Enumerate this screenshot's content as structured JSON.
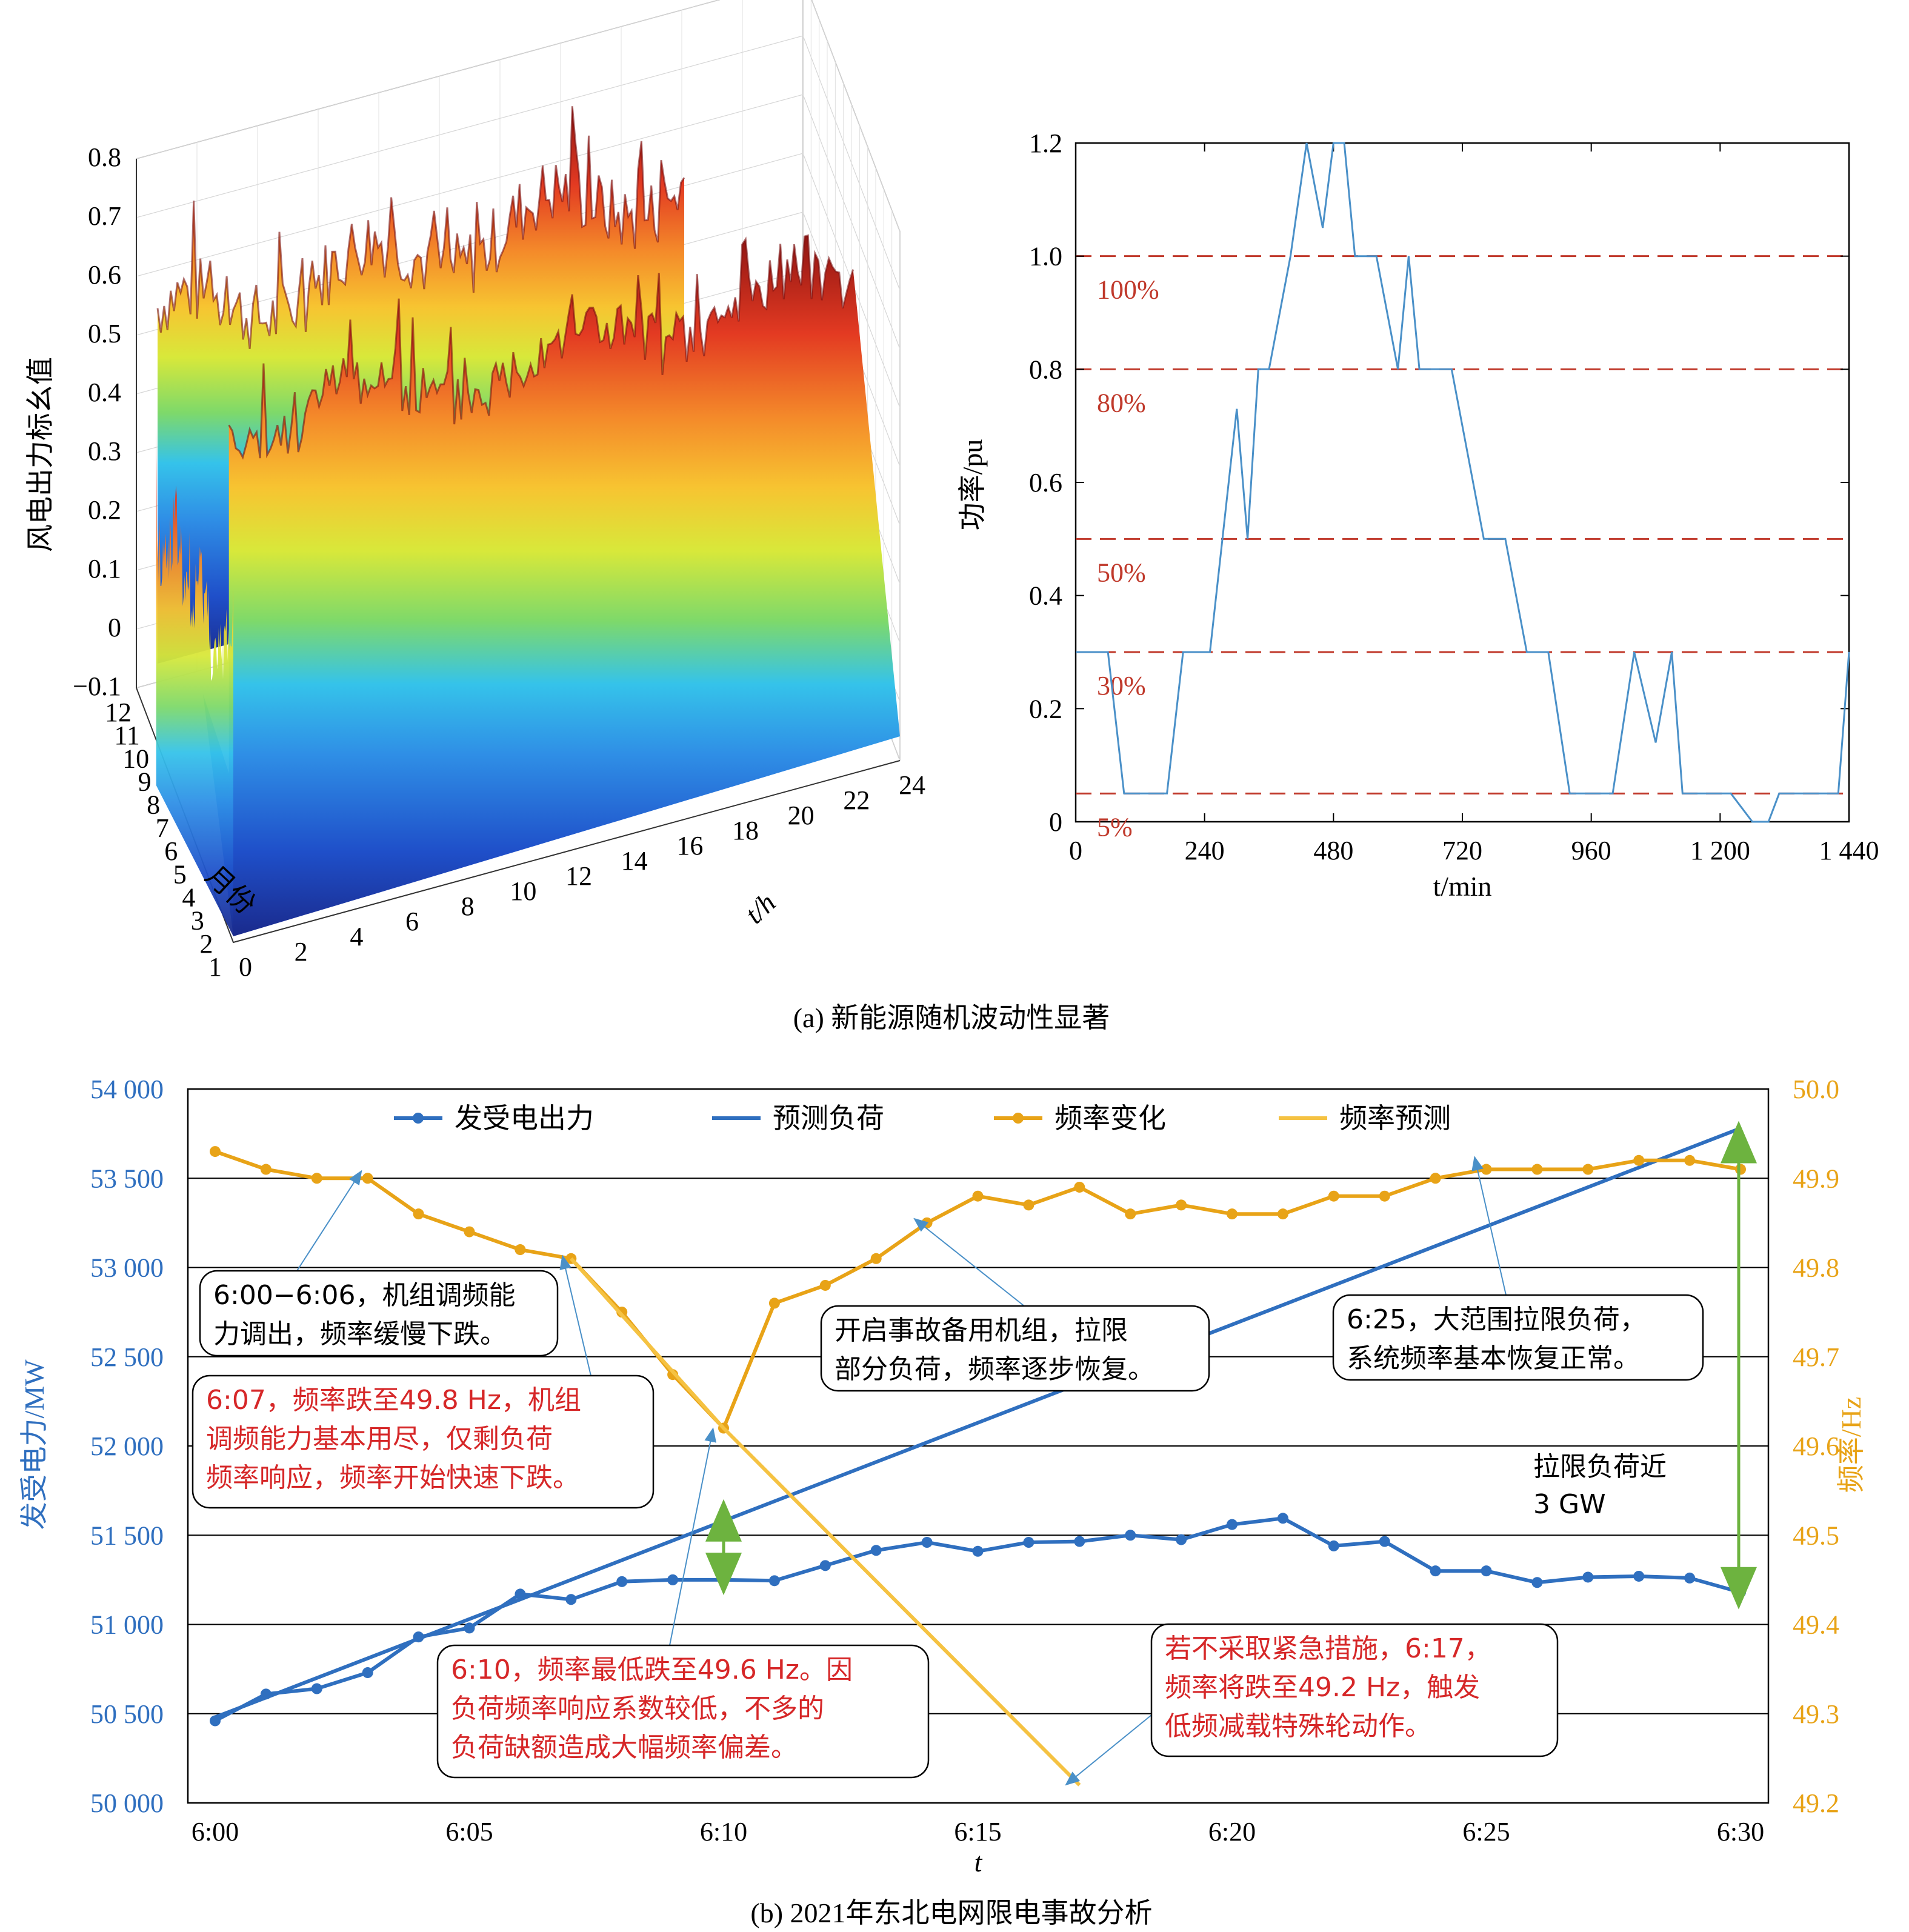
{
  "chart_data": [
    {
      "type": "surface3d",
      "panel": "a-left",
      "zlabel": "风电出力标幺值",
      "z_ticks": [
        "0.8",
        "0.7",
        "0.6",
        "0.5",
        "0.4",
        "0.3",
        "0.2",
        "0.1",
        "0",
        "−0.1"
      ],
      "y_label": "月份",
      "y_ticks": [
        "12",
        "11",
        "10",
        "9",
        "8",
        "7",
        "6",
        "5",
        "4",
        "3",
        "2",
        "1"
      ],
      "x_label": "t/h",
      "x_ticks": [
        "0",
        "2",
        "4",
        "6",
        "8",
        "10",
        "12",
        "14",
        "16",
        "18",
        "20",
        "22",
        "24"
      ],
      "zlim": [
        -0.1,
        0.8
      ],
      "xlim": [
        0,
        24
      ],
      "ylim": [
        1,
        12
      ],
      "colormap": "jet"
    },
    {
      "type": "line",
      "panel": "a-right",
      "xlabel": "t/min",
      "ylabel": "功率/pu",
      "xlim": [
        0,
        1440
      ],
      "ylim": [
        0,
        1.2
      ],
      "x_ticks": [
        "0",
        "240",
        "480",
        "720",
        "960",
        "1 200",
        "1 440"
      ],
      "y_ticks": [
        "0",
        "0.2",
        "0.4",
        "0.6",
        "0.8",
        "1.0",
        "1.2"
      ],
      "line_color": "#4a90c8",
      "ref_color": "#c0392b",
      "reference_lines": [
        {
          "y": 1.0,
          "label": "100%"
        },
        {
          "y": 0.8,
          "label": "80%"
        },
        {
          "y": 0.5,
          "label": "50%"
        },
        {
          "y": 0.3,
          "label": "30%"
        },
        {
          "y": 0.05,
          "label": "5%"
        }
      ],
      "x": [
        0,
        60,
        90,
        120,
        170,
        200,
        230,
        250,
        300,
        320,
        340,
        360,
        400,
        430,
        460,
        480,
        500,
        520,
        540,
        560,
        600,
        620,
        640,
        660,
        680,
        700,
        760,
        800,
        840,
        880,
        920,
        960,
        1000,
        1040,
        1080,
        1110,
        1130,
        1150,
        1180,
        1220,
        1260,
        1290,
        1310,
        1340,
        1380,
        1420,
        1440
      ],
      "y": [
        0.3,
        0.3,
        0.05,
        0.05,
        0.05,
        0.3,
        0.3,
        0.3,
        0.73,
        0.5,
        0.8,
        0.8,
        1.0,
        1.2,
        1.05,
        1.2,
        1.2,
        1.0,
        1.0,
        1.0,
        0.8,
        1.0,
        0.8,
        0.8,
        0.8,
        0.8,
        0.5,
        0.5,
        0.3,
        0.3,
        0.05,
        0.05,
        0.05,
        0.3,
        0.14,
        0.3,
        0.05,
        0.05,
        0.05,
        0.05,
        0.0,
        0.0,
        0.05,
        0.05,
        0.05,
        0.05,
        0.3
      ]
    },
    {
      "type": "line",
      "panel": "b",
      "xlabel": "t",
      "ylabel_left": "发受电力/MW",
      "ylabel_right": "频率/Hz",
      "x_ticks": [
        "6:00",
        "6:05",
        "6:10",
        "6:15",
        "6:20",
        "6:25",
        "6:30"
      ],
      "y_left_ticks": [
        "54 000",
        "53 500",
        "53 000",
        "52 500",
        "52 000",
        "51 500",
        "51 000",
        "50 500",
        "50 000"
      ],
      "y_right_ticks": [
        "50.0",
        "49.9",
        "49.8",
        "49.7",
        "49.6",
        "49.5",
        "49.4",
        "49.3",
        "49.2"
      ],
      "ylim_left": [
        50000,
        54000
      ],
      "ylim_right": [
        49.2,
        50.0
      ],
      "xlim": [
        0,
        30
      ],
      "legend": [
        "发受电出力",
        "预测负荷",
        "频率变化",
        "频率预测"
      ],
      "series": [
        {
          "name": "发受电出力",
          "axis": "left",
          "color": "#2f6fbf",
          "marker": true,
          "x": [
            0,
            1,
            2,
            3,
            4,
            5,
            6,
            7,
            8,
            9,
            10,
            11,
            12,
            13,
            14,
            15,
            16,
            17,
            18,
            19,
            20,
            21,
            22,
            23,
            24,
            25,
            26,
            27,
            28,
            29,
            30
          ],
          "values": [
            50460,
            50610,
            50640,
            50730,
            50930,
            50980,
            51170,
            51140,
            51240,
            51250,
            51250,
            51245,
            51330,
            51415,
            51460,
            51410,
            51460,
            51465,
            51500,
            51475,
            51560,
            51595,
            51440,
            51465,
            51300,
            51300,
            51235,
            51265,
            51270,
            51260,
            51180
          ]
        },
        {
          "name": "预测负荷",
          "axis": "left",
          "color": "#2f6fbf",
          "marker": false,
          "x": [
            0,
            30
          ],
          "values": [
            50480,
            53780
          ]
        },
        {
          "name": "频率变化",
          "axis": "right",
          "color": "#e8a317",
          "marker": true,
          "x": [
            0,
            1,
            2,
            3,
            4,
            5,
            6,
            7,
            8,
            9,
            10,
            11,
            12,
            13,
            14,
            15,
            16,
            17,
            18,
            19,
            20,
            21,
            22,
            23,
            24,
            25,
            26,
            27,
            28,
            29,
            30
          ],
          "values": [
            49.93,
            49.91,
            49.9,
            49.9,
            49.86,
            49.84,
            49.82,
            49.81,
            49.75,
            49.68,
            49.62,
            49.76,
            49.78,
            49.81,
            49.85,
            49.88,
            49.87,
            49.89,
            49.86,
            49.87,
            49.86,
            49.86,
            49.88,
            49.88,
            49.9,
            49.91,
            49.91,
            49.91,
            49.92,
            49.92,
            49.91
          ]
        },
        {
          "name": "频率预测",
          "axis": "right",
          "color": "#f5c242",
          "marker": false,
          "x": [
            7,
            10,
            17
          ],
          "values": [
            49.81,
            49.62,
            49.22
          ]
        }
      ],
      "annotations": [
        {
          "id": "a1",
          "lines": [
            "6:00−6:06，机组调频能",
            "力调出，频率缓慢下跌。"
          ],
          "color": "#000000"
        },
        {
          "id": "a2",
          "lines": [
            "6:07，频率跌至49.8 Hz，机组",
            "调频能力基本用尽，仅剩负荷",
            "频率响应，频率开始快速下跌。"
          ],
          "color": "#d62728"
        },
        {
          "id": "a3",
          "lines": [
            "开启事故备用机组，拉限",
            "部分负荷，频率逐步恢复。"
          ],
          "color": "#000000"
        },
        {
          "id": "a4",
          "lines": [
            "6:25，大范围拉限负荷，",
            "系统频率基本恢复正常。"
          ],
          "color": "#000000"
        },
        {
          "id": "a5",
          "lines": [
            "6:10，频率最低跌至49.6 Hz。因",
            "负荷频率响应系数较低，不多的",
            "负荷缺额造成大幅频率偏差。"
          ],
          "color": "#d62728"
        },
        {
          "id": "a6",
          "lines": [
            "若不采取紧急措施，6:17，",
            "频率将跌至49.2 Hz，触发",
            "低频减载特殊轮动作。"
          ],
          "color": "#d62728"
        },
        {
          "id": "a7",
          "lines": [
            "拉限负荷近",
            "3 GW"
          ],
          "color": "#000000"
        }
      ],
      "arrow_color": "#6db33f"
    }
  ],
  "captions": {
    "a": "(a) 新能源随机波动性显著",
    "b": "(b) 2021年东北电网限电事故分析"
  }
}
